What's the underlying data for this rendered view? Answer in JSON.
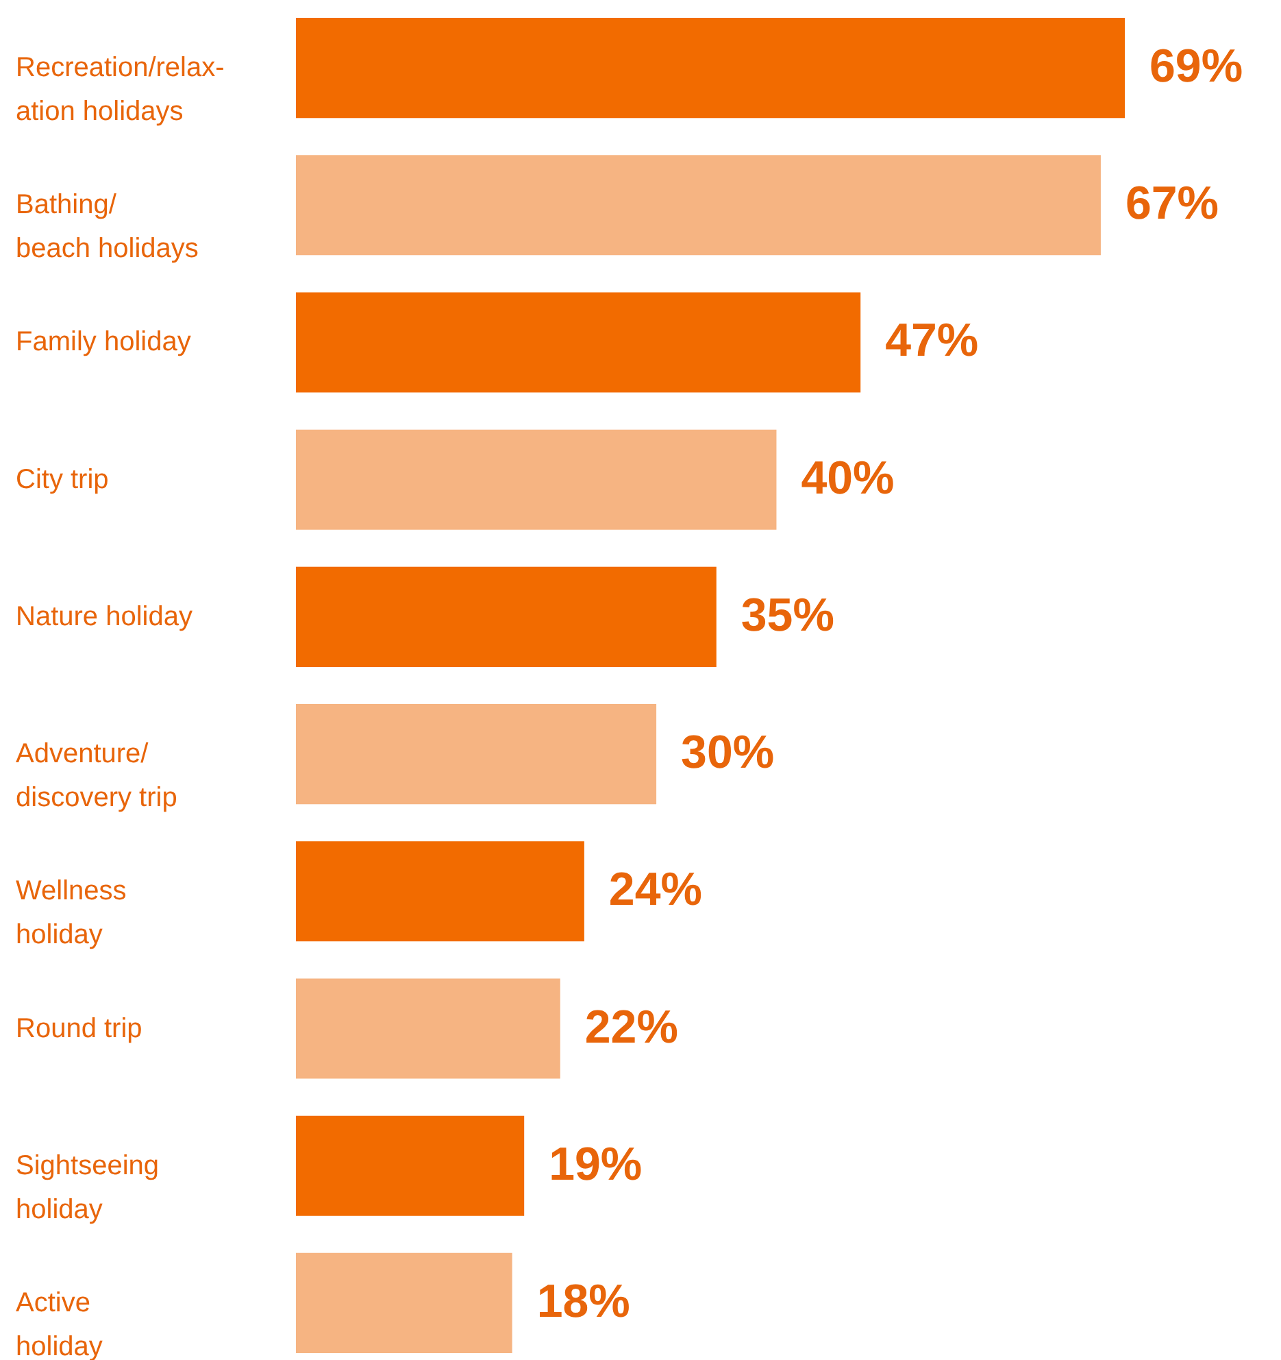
{
  "chart_data": {
    "type": "bar",
    "orientation": "horizontal",
    "tick_labels": "y",
    "categories": [
      "Recreation/relax-\nation holidays",
      "Bathing/\nbeach holidays",
      "Family holiday",
      "City trip",
      "Nature holiday",
      "Adventure/\ndiscovery trip",
      "Wellness\nholiday",
      "Round trip",
      "Sightseeing\nholiday",
      "Active\nholiday"
    ],
    "values": [
      69,
      67,
      47,
      40,
      35,
      30,
      24,
      22,
      19,
      18
    ],
    "value_labels": [
      "69%",
      "67%",
      "47%",
      "40%",
      "35%",
      "30%",
      "24%",
      "22%",
      "19%",
      "18%"
    ],
    "colors": [
      "#f26b00",
      "#f6b482",
      "#f26b00",
      "#f6b482",
      "#f26b00",
      "#f6b482",
      "#f26b00",
      "#f6b482",
      "#f26b00",
      "#f6b482"
    ]
  }
}
